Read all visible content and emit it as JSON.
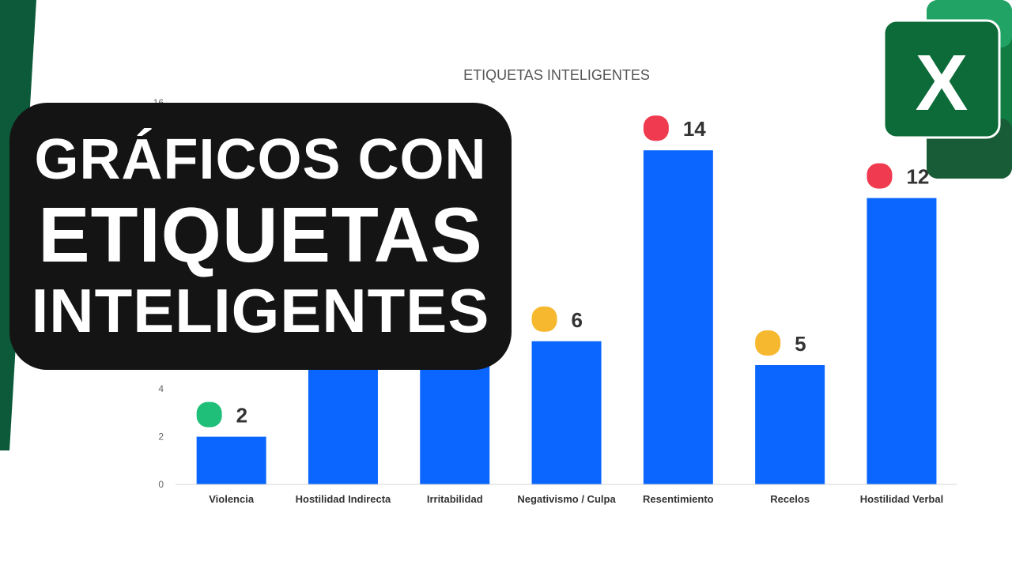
{
  "banner": {
    "line1": "GRÁFICOS CON",
    "line2": "ETIQUETAS",
    "line3": "INTELIGENTES"
  },
  "logo": {
    "icon": "excel-logo-icon",
    "letter": "X",
    "colors": {
      "light": "#21a366",
      "mid": "#107c41",
      "dark": "#185c37",
      "tile": "#0c6b38"
    }
  },
  "colors": {
    "bar": "#0a66ff",
    "stripe": "#0c5a3a",
    "marker_green": "#1fbf7a",
    "marker_yellow": "#f5b82e",
    "marker_red": "#f03a4f",
    "axis_text": "#666666",
    "label_text": "#333333"
  },
  "chart_data": {
    "type": "bar",
    "title": "ETIQUETAS INTELIGENTES",
    "categories": [
      "Violencia",
      "Hostilidad Indirecta",
      "Irritabilidad",
      "Negativismo / Culpa",
      "Resentimiento",
      "Recelos",
      "Hostilidad Verbal"
    ],
    "values": [
      2,
      6,
      5,
      6,
      14,
      5,
      12
    ],
    "data_labels": [
      "2",
      "",
      "",
      "6",
      "14",
      "5",
      "12"
    ],
    "markers": [
      "green",
      "",
      "",
      "yellow",
      "red",
      "yellow",
      "red"
    ],
    "yticks": [
      "0",
      "2",
      "4",
      "16"
    ],
    "ylim": [
      0,
      16
    ],
    "grid": false,
    "legend": "none"
  }
}
